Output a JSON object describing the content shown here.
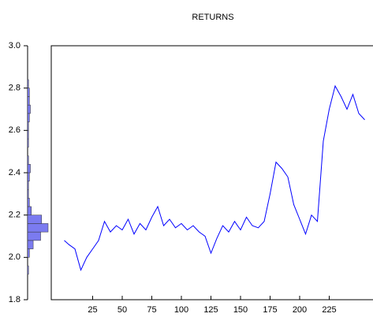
{
  "chart_data": [
    {
      "type": "histogram",
      "orientation": "horizontal",
      "color": "#7b7bf0",
      "bins": [
        1.92,
        1.96,
        2.0,
        2.04,
        2.08,
        2.12,
        2.16,
        2.2,
        2.24,
        2.28,
        2.32,
        2.36,
        2.4,
        2.44,
        2.48,
        2.52,
        2.56,
        2.6,
        2.64,
        2.68,
        2.72,
        2.76,
        2.8,
        2.84
      ],
      "counts": [
        1,
        0,
        2,
        6,
        14,
        22,
        15,
        4,
        2,
        1,
        1,
        2,
        3,
        1,
        0,
        1,
        1,
        1,
        2,
        3,
        2,
        2,
        1
      ],
      "ylim": [
        1.8,
        3.0
      ],
      "yticks": [
        1.8,
        {
          "value": 2,
          "label": "2.0"
        },
        2.2,
        2.4,
        2.6,
        2.8,
        {
          "value": 3,
          "label": "3.0"
        }
      ]
    },
    {
      "type": "line",
      "title": "RETURNS",
      "color": "#0000ff",
      "x": [
        1,
        5,
        10,
        15,
        20,
        25,
        30,
        35,
        40,
        45,
        50,
        55,
        60,
        65,
        70,
        75,
        80,
        85,
        90,
        95,
        100,
        105,
        110,
        115,
        120,
        125,
        130,
        135,
        140,
        145,
        150,
        155,
        160,
        165,
        170,
        175,
        180,
        185,
        190,
        195,
        200,
        205,
        210,
        215,
        220,
        225,
        230,
        235,
        240,
        245,
        250,
        255
      ],
      "values": [
        2.08,
        2.06,
        2.04,
        1.94,
        2.0,
        2.04,
        2.08,
        2.17,
        2.12,
        2.15,
        2.13,
        2.18,
        2.11,
        2.16,
        2.13,
        2.19,
        2.24,
        2.15,
        2.18,
        2.14,
        2.16,
        2.13,
        2.15,
        2.12,
        2.1,
        2.02,
        2.09,
        2.15,
        2.12,
        2.17,
        2.13,
        2.19,
        2.15,
        2.14,
        2.17,
        2.3,
        2.45,
        2.42,
        2.38,
        2.25,
        2.18,
        2.11,
        2.2,
        2.17,
        2.55,
        2.7,
        2.81,
        2.76,
        2.7,
        2.77,
        2.68,
        2.65
      ],
      "xlim": [
        -10,
        262
      ],
      "xticks": [
        25,
        50,
        75,
        100,
        125,
        150,
        175,
        200,
        225
      ],
      "ylim": [
        1.8,
        3.0
      ]
    }
  ]
}
